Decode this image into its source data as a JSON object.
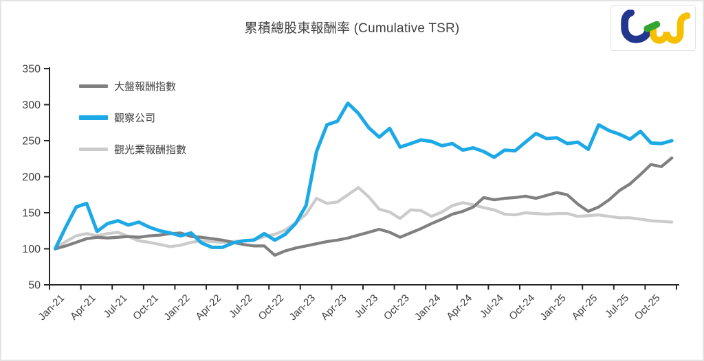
{
  "header": {
    "title": "累積總股東報酬率 (Cumulative TSR)",
    "logo_alt": "tej"
  },
  "logo_colors": {
    "blue": "#23368f",
    "green": "#33a532",
    "yellow": "#f6c000"
  },
  "axis_color": "#262626",
  "label_color": "#404040",
  "chart_data": {
    "type": "line",
    "title": "累積總股東報酬率 (Cumulative TSR)",
    "xlabel": "",
    "ylabel": "",
    "ylim": [
      50,
      350
    ],
    "y_ticks": [
      50,
      100,
      150,
      200,
      250,
      300,
      350
    ],
    "x_tick_labels": [
      "Jan-21",
      "Apr-21",
      "Jul-21",
      "Oct-21",
      "Jan-22",
      "Apr-22",
      "Jul-22",
      "Oct-22",
      "Jan-23",
      "Apr-23",
      "Jul-23",
      "Oct-23",
      "Jan-24",
      "Apr-24",
      "Jul-24",
      "Oct-24",
      "Jan-25",
      "Apr-25",
      "Jul-25",
      "Oct-25"
    ],
    "months_per_tick": 3,
    "grid": false,
    "legend_position": "inside-top-left",
    "draw_order": [
      2,
      0,
      1
    ],
    "series": [
      {
        "name": "大盤報酬指數",
        "color": "#808080",
        "values": [
          100,
          104,
          109,
          114,
          116,
          115,
          116,
          117,
          116,
          118,
          119,
          121,
          122,
          117,
          116,
          114,
          112,
          109,
          106,
          104,
          104,
          91,
          97,
          101,
          104,
          107,
          110,
          112,
          115,
          119,
          123,
          127,
          123,
          116,
          122,
          128,
          135,
          141,
          148,
          152,
          158,
          171,
          168,
          170,
          171,
          173,
          170,
          174,
          178,
          175,
          162,
          152,
          158,
          168,
          181,
          190,
          203,
          217,
          214,
          226
        ]
      },
      {
        "name": "觀察公司",
        "color": "#1ca9e6",
        "values": [
          100,
          130,
          158,
          163,
          124,
          135,
          139,
          133,
          137,
          130,
          125,
          122,
          118,
          122,
          108,
          102,
          102,
          108,
          111,
          112,
          121,
          112,
          120,
          135,
          160,
          235,
          272,
          277,
          302,
          288,
          268,
          255,
          267,
          241,
          246,
          251,
          249,
          243,
          246,
          237,
          240,
          235,
          227,
          237,
          236,
          248,
          260,
          253,
          254,
          246,
          248,
          238,
          272,
          264,
          259,
          252,
          263,
          247,
          246,
          250
        ]
      },
      {
        "name": "觀光業報酬指數",
        "color": "#cbcbcb",
        "values": [
          100,
          110,
          118,
          121,
          118,
          121,
          123,
          117,
          111,
          109,
          106,
          103,
          105,
          109,
          111,
          110,
          109,
          110,
          111,
          112,
          117,
          120,
          126,
          136,
          148,
          170,
          163,
          165,
          175,
          185,
          172,
          155,
          151,
          142,
          154,
          153,
          145,
          151,
          160,
          164,
          161,
          157,
          154,
          148,
          147,
          150,
          149,
          148,
          149,
          149,
          145,
          146,
          147,
          145,
          143,
          143,
          141,
          139,
          138,
          137
        ]
      }
    ]
  }
}
